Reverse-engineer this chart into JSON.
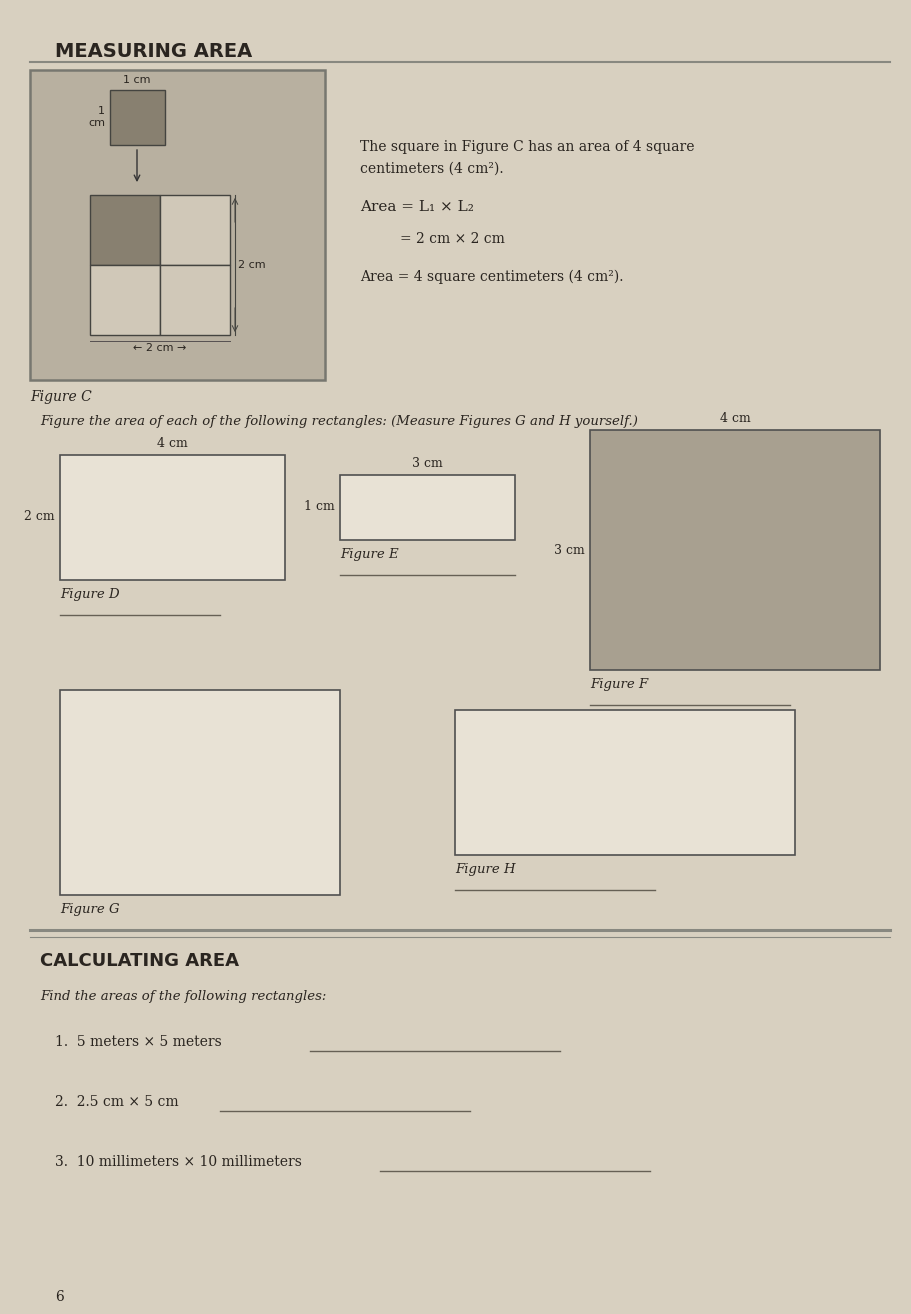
{
  "page_bg": "#d8d0c0",
  "inner_bg": "#ccc5b5",
  "title": "MEASURING AREA",
  "figure_c_caption": "Figure C",
  "instruction_text": "Figure the area of each of the following rectangles: (Measure Figures G and H yourself.)",
  "text_line1": "The square in Figure C has an area of 4 square",
  "text_line2": "centimeters (4 cm²).",
  "text_line3": "Area = L₁ × L₂",
  "text_line4": "= 2 cm × 2 cm",
  "text_line5": "Area = 4 square centimeters (4 cm²).",
  "label_4cm_D": "4 cm",
  "label_2cm_D": "2 cm",
  "label_figD": "Figure D",
  "label_3cm_E": "3 cm",
  "label_1cm_E": "1 cm",
  "label_figE": "Figure E",
  "label_4cm_F": "4 cm",
  "label_3cm_F": "3 cm",
  "label_figF": "Figure F",
  "label_figG": "Figure G",
  "label_figH": "Figure H",
  "calc_title": "CALCULATING AREA",
  "calc_instruction": "Find the areas of the following rectangles:",
  "calc_item1": "1.  5 meters × 5 meters",
  "calc_item2": "2.  2.5 cm × 5 cm",
  "calc_item3": "3.  10 millimeters × 10 millimeters",
  "page_number": "6",
  "text_color": "#2a2520",
  "line_color": "#666055",
  "rect_face": "#e8e2d5",
  "rect_edge": "#505050",
  "figC_box_face": "#b8b0a0",
  "figF_face": "#a8a090",
  "grid_dark": "#888070",
  "grid_light": "#d0c8b8"
}
